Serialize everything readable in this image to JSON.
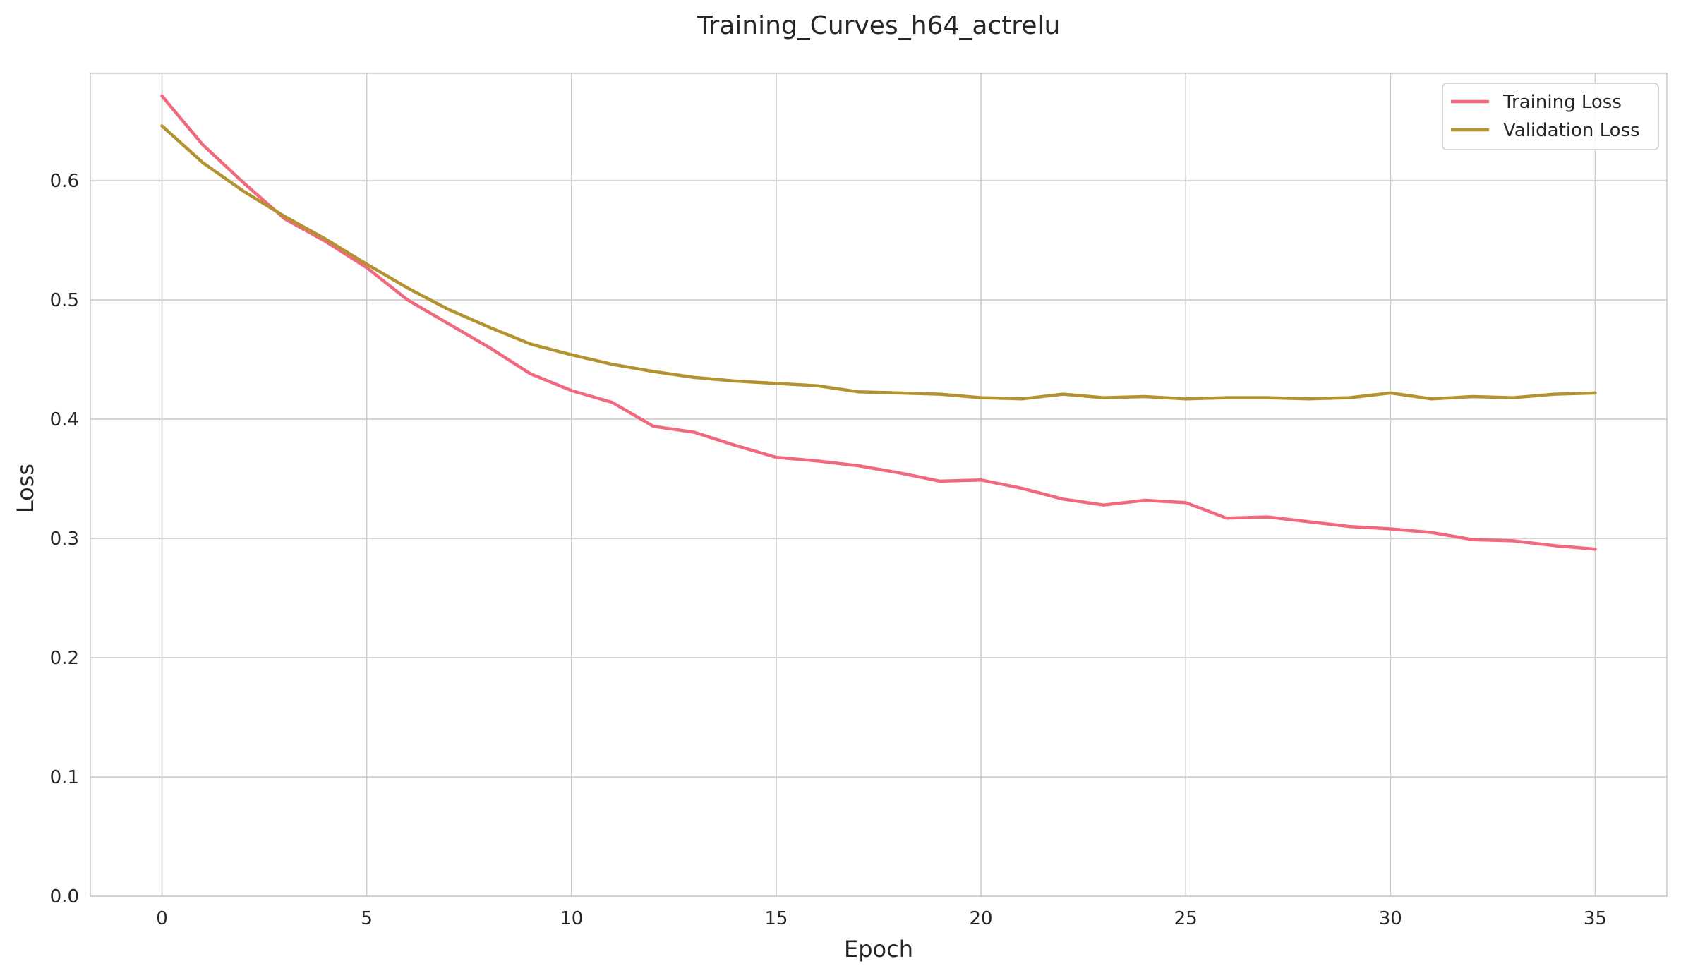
{
  "chart_data": {
    "type": "line",
    "title": "Training_Curves_h64_actrelu",
    "xlabel": "Epoch",
    "ylabel": "Loss",
    "xlim": [
      -1.75,
      36.75
    ],
    "ylim": [
      0.0,
      0.69
    ],
    "xticks": [
      0,
      5,
      10,
      15,
      20,
      25,
      30,
      35
    ],
    "yticks": [
      0.0,
      0.1,
      0.2,
      0.3,
      0.4,
      0.5,
      0.6
    ],
    "ytick_labels": [
      "0.0",
      "0.1",
      "0.2",
      "0.3",
      "0.4",
      "0.5",
      "0.6"
    ],
    "grid": true,
    "legend_position": "top-right",
    "x": [
      0,
      1,
      2,
      3,
      4,
      5,
      6,
      7,
      8,
      9,
      10,
      11,
      12,
      13,
      14,
      15,
      16,
      17,
      18,
      19,
      20,
      21,
      22,
      23,
      24,
      25,
      26,
      27,
      28,
      29,
      30,
      31,
      32,
      33,
      34,
      35
    ],
    "series": [
      {
        "name": "Training Loss",
        "color": "#f0697e",
        "values": [
          0.671,
          0.63,
          0.598,
          0.568,
          0.549,
          0.527,
          0.5,
          0.48,
          0.46,
          0.438,
          0.424,
          0.414,
          0.394,
          0.389,
          0.378,
          0.368,
          0.365,
          0.361,
          0.355,
          0.348,
          0.349,
          0.342,
          0.333,
          0.328,
          0.332,
          0.33,
          0.317,
          0.318,
          0.314,
          0.31,
          0.308,
          0.305,
          0.299,
          0.298,
          0.294,
          0.291
        ]
      },
      {
        "name": "Validation Loss",
        "color": "#b59230",
        "values": [
          0.646,
          0.615,
          0.591,
          0.57,
          0.551,
          0.53,
          0.51,
          0.492,
          0.477,
          0.463,
          0.454,
          0.446,
          0.44,
          0.435,
          0.432,
          0.43,
          0.428,
          0.423,
          0.422,
          0.421,
          0.418,
          0.417,
          0.421,
          0.418,
          0.419,
          0.417,
          0.418,
          0.418,
          0.417,
          0.418,
          0.422,
          0.417,
          0.419,
          0.418,
          0.421,
          0.422
        ]
      }
    ]
  }
}
